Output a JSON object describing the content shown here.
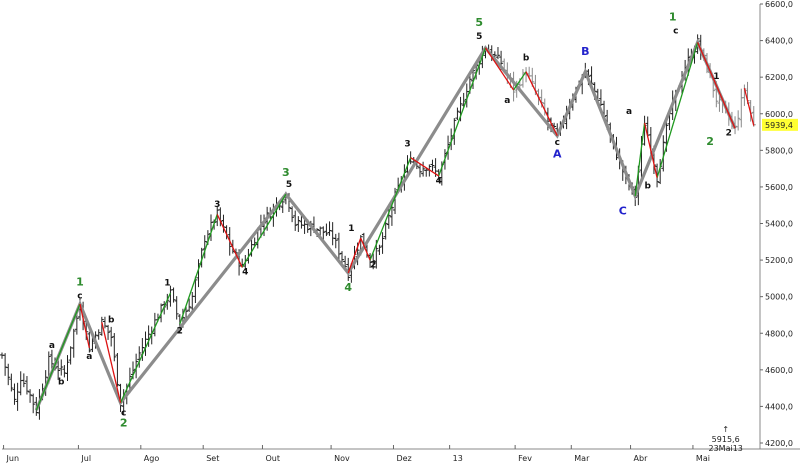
{
  "chart_data": {
    "type": "ohlc",
    "ylim": [
      4200,
      6600
    ],
    "y_ticks": [
      "4200,0",
      "4400,0",
      "4600,0",
      "4800,0",
      "5000,0",
      "5200,0",
      "5400,0",
      "5600,0",
      "5800,0",
      "6000,0",
      "6200,0",
      "6400,0",
      "6600,0"
    ],
    "y_tick_values": [
      4200,
      4400,
      4600,
      4800,
      5000,
      5200,
      5400,
      5600,
      5800,
      6000,
      6200,
      6400,
      6600
    ],
    "months": [
      {
        "label": "Jun",
        "t": 0.5
      },
      {
        "label": "Jul",
        "t": 24.5
      },
      {
        "label": "Ago",
        "t": 44.5
      },
      {
        "label": "Set",
        "t": 64.5
      },
      {
        "label": "Out",
        "t": 83.5
      },
      {
        "label": "Nov",
        "t": 105.5
      },
      {
        "label": "Dez",
        "t": 125.5
      },
      {
        "label": "13",
        "t": 143.5
      },
      {
        "label": "Fev",
        "t": 164.5
      },
      {
        "label": "Mar",
        "t": 182.5
      },
      {
        "label": "Abr",
        "t": 201.5
      },
      {
        "label": "Mai",
        "t": 221.5
      }
    ],
    "last_price": "5939,4",
    "annotation": {
      "arrow": "↑",
      "value": "5915,6",
      "date": "23Mai13",
      "t": 232
    },
    "anchors": [
      [
        0,
        4680
      ],
      [
        4,
        4430
      ],
      [
        6,
        4560
      ],
      [
        8,
        4500
      ],
      [
        11,
        4380
      ],
      [
        15,
        4650
      ],
      [
        20,
        4580
      ],
      [
        25,
        4960
      ],
      [
        28,
        4720
      ],
      [
        32,
        4860
      ],
      [
        35,
        4780
      ],
      [
        38,
        4420
      ],
      [
        44,
        4690
      ],
      [
        50,
        4900
      ],
      [
        54,
        5020
      ],
      [
        57,
        4850
      ],
      [
        61,
        5000
      ],
      [
        65,
        5320
      ],
      [
        69,
        5450
      ],
      [
        73,
        5280
      ],
      [
        77,
        5160
      ],
      [
        83,
        5400
      ],
      [
        91,
        5560
      ],
      [
        94,
        5400
      ],
      [
        100,
        5380
      ],
      [
        106,
        5330
      ],
      [
        111,
        5130
      ],
      [
        115,
        5320
      ],
      [
        118,
        5200
      ],
      [
        121,
        5260
      ],
      [
        126,
        5550
      ],
      [
        131,
        5760
      ],
      [
        134,
        5700
      ],
      [
        137,
        5720
      ],
      [
        140,
        5660
      ],
      [
        145,
        5940
      ],
      [
        150,
        6190
      ],
      [
        155,
        6360
      ],
      [
        160,
        6280
      ],
      [
        164,
        6130
      ],
      [
        168,
        6230
      ],
      [
        171,
        6120
      ],
      [
        175,
        5960
      ],
      [
        178,
        5880
      ],
      [
        183,
        6100
      ],
      [
        187,
        6230
      ],
      [
        192,
        6050
      ],
      [
        195,
        5870
      ],
      [
        200,
        5640
      ],
      [
        203,
        5550
      ],
      [
        206,
        5950
      ],
      [
        208,
        5820
      ],
      [
        210,
        5650
      ],
      [
        214,
        6000
      ],
      [
        219,
        6260
      ],
      [
        223,
        6390
      ],
      [
        226,
        6250
      ],
      [
        229,
        6080
      ],
      [
        232,
        6000
      ],
      [
        235,
        5920
      ],
      [
        238,
        6140
      ],
      [
        241,
        5935
      ]
    ],
    "wave_lines": [
      [
        11,
        4380
      ],
      [
        25,
        4960
      ],
      [
        38,
        4420
      ],
      [
        91,
        5560
      ],
      [
        111,
        5130
      ],
      [
        155,
        6360
      ],
      [
        178,
        5880
      ],
      [
        187,
        6230
      ],
      [
        203,
        5550
      ],
      [
        223,
        6390
      ],
      [
        235,
        5920
      ]
    ],
    "green_segments": [
      [
        [
          11,
          4380
        ],
        [
          25,
          4960
        ]
      ],
      [
        [
          38,
          4420
        ],
        [
          54,
          5020
        ]
      ],
      [
        [
          57,
          4850
        ],
        [
          69,
          5450
        ]
      ],
      [
        [
          77,
          5160
        ],
        [
          91,
          5560
        ]
      ],
      [
        [
          118,
          5200
        ],
        [
          131,
          5760
        ]
      ],
      [
        [
          140,
          5660
        ],
        [
          155,
          6360
        ]
      ],
      [
        [
          164,
          6130
        ],
        [
          168,
          6230
        ]
      ],
      [
        [
          203,
          5550
        ],
        [
          206,
          5950
        ]
      ],
      [
        [
          210,
          5650
        ],
        [
          223,
          6390
        ]
      ]
    ],
    "red_segments": [
      [
        [
          25,
          4960
        ],
        [
          28,
          4720
        ]
      ],
      [
        [
          32,
          4860
        ],
        [
          38,
          4420
        ]
      ],
      [
        [
          69,
          5450
        ],
        [
          77,
          5160
        ]
      ],
      [
        [
          111,
          5130
        ],
        [
          115,
          5320
        ]
      ],
      [
        [
          115,
          5320
        ],
        [
          118,
          5200
        ]
      ],
      [
        [
          131,
          5760
        ],
        [
          140,
          5660
        ]
      ],
      [
        [
          155,
          6360
        ],
        [
          164,
          6130
        ]
      ],
      [
        [
          168,
          6230
        ],
        [
          178,
          5880
        ]
      ],
      [
        [
          206,
          5950
        ],
        [
          210,
          5650
        ]
      ],
      [
        [
          223,
          6390
        ],
        [
          235,
          5920
        ]
      ],
      [
        [
          238,
          6140
        ],
        [
          241,
          5935
        ]
      ]
    ],
    "wave_labels": [
      {
        "text": "1",
        "t": 25,
        "v": 5060,
        "color": "#2e8b2e",
        "big": true
      },
      {
        "text": "c",
        "t": 25,
        "v": 4990,
        "color": "#111111"
      },
      {
        "text": "a",
        "t": 16,
        "v": 4720,
        "color": "#111111"
      },
      {
        "text": "b",
        "t": 19,
        "v": 4520,
        "color": "#111111"
      },
      {
        "text": "a",
        "t": 28,
        "v": 4660,
        "color": "#111111"
      },
      {
        "text": "b",
        "t": 35,
        "v": 4860,
        "color": "#111111"
      },
      {
        "text": "c",
        "t": 39,
        "v": 4350,
        "color": "#111111"
      },
      {
        "text": "2",
        "t": 39,
        "v": 4290,
        "color": "#2e8b2e",
        "big": true
      },
      {
        "text": "1",
        "t": 53,
        "v": 5060,
        "color": "#111111"
      },
      {
        "text": "2",
        "t": 57,
        "v": 4800,
        "color": "#111111"
      },
      {
        "text": "3",
        "t": 69,
        "v": 5490,
        "color": "#111111"
      },
      {
        "text": "4",
        "t": 78,
        "v": 5120,
        "color": "#111111"
      },
      {
        "text": "3",
        "t": 91,
        "v": 5660,
        "color": "#2e8b2e",
        "big": true
      },
      {
        "text": "5",
        "t": 92,
        "v": 5600,
        "color": "#111111"
      },
      {
        "text": "1",
        "t": 112,
        "v": 5360,
        "color": "#111111"
      },
      {
        "text": "2",
        "t": 119,
        "v": 5160,
        "color": "#111111"
      },
      {
        "text": "4",
        "t": 111,
        "v": 5030,
        "color": "#2e8b2e",
        "big": true
      },
      {
        "text": "3",
        "t": 130,
        "v": 5820,
        "color": "#111111"
      },
      {
        "text": "4",
        "t": 140,
        "v": 5620,
        "color": "#111111"
      },
      {
        "text": "5",
        "t": 153,
        "v": 6480,
        "color": "#2e8b2e",
        "big": true
      },
      {
        "text": "5",
        "t": 153,
        "v": 6410,
        "color": "#111111"
      },
      {
        "text": "a",
        "t": 162,
        "v": 6060,
        "color": "#111111"
      },
      {
        "text": "b",
        "t": 168,
        "v": 6290,
        "color": "#111111"
      },
      {
        "text": "c",
        "t": 178,
        "v": 5830,
        "color": "#111111"
      },
      {
        "text": "A",
        "t": 178,
        "v": 5760,
        "color": "#2222cc",
        "big": true
      },
      {
        "text": "B",
        "t": 187,
        "v": 6320,
        "color": "#2222cc",
        "big": true
      },
      {
        "text": "C",
        "t": 199,
        "v": 5450,
        "color": "#2222cc",
        "big": true
      },
      {
        "text": "a",
        "t": 201,
        "v": 6000,
        "color": "#111111"
      },
      {
        "text": "b",
        "t": 207,
        "v": 5590,
        "color": "#111111"
      },
      {
        "text": "1",
        "t": 215,
        "v": 6510,
        "color": "#2e8b2e",
        "big": true
      },
      {
        "text": "c",
        "t": 216,
        "v": 6440,
        "color": "#111111"
      },
      {
        "text": "1",
        "t": 229,
        "v": 6190,
        "color": "#111111"
      },
      {
        "text": "2",
        "t": 227,
        "v": 5830,
        "color": "#2e8b2e",
        "big": true
      },
      {
        "text": "2",
        "t": 233,
        "v": 5880,
        "color": "#111111"
      }
    ]
  }
}
